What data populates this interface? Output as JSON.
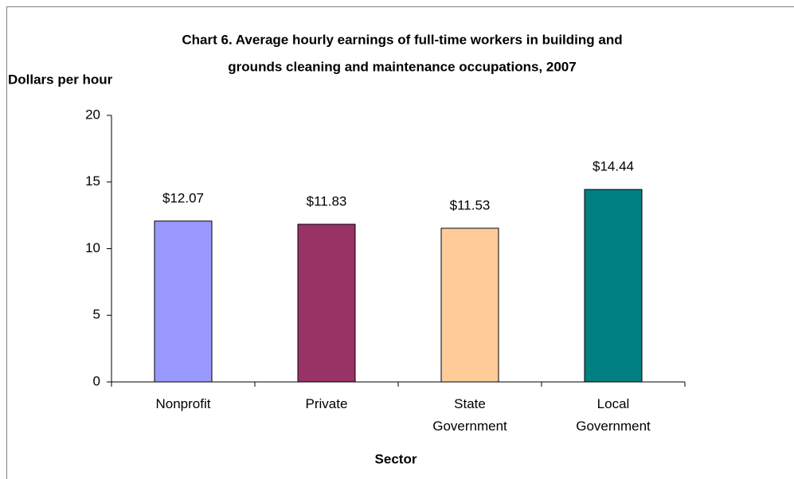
{
  "chart_data": {
    "type": "bar",
    "title_lines": [
      "Chart 6. Average hourly earnings of full-time workers in building and",
      "grounds cleaning and maintenance occupations, 2007"
    ],
    "y_label": "Dollars per hour",
    "x_label": "Sector",
    "categories": [
      "Nonprofit",
      "Private",
      "State Government",
      "Local Government"
    ],
    "values": [
      12.07,
      11.83,
      11.53,
      14.44
    ],
    "value_labels": [
      "$12.07",
      "$11.83",
      "$11.53",
      "$14.44"
    ],
    "colors": [
      "#9999ff",
      "#993366",
      "#ffcc99",
      "#008080"
    ],
    "ylim": [
      0,
      20
    ],
    "yticks": [
      0,
      5,
      10,
      15,
      20
    ],
    "grid": false
  }
}
